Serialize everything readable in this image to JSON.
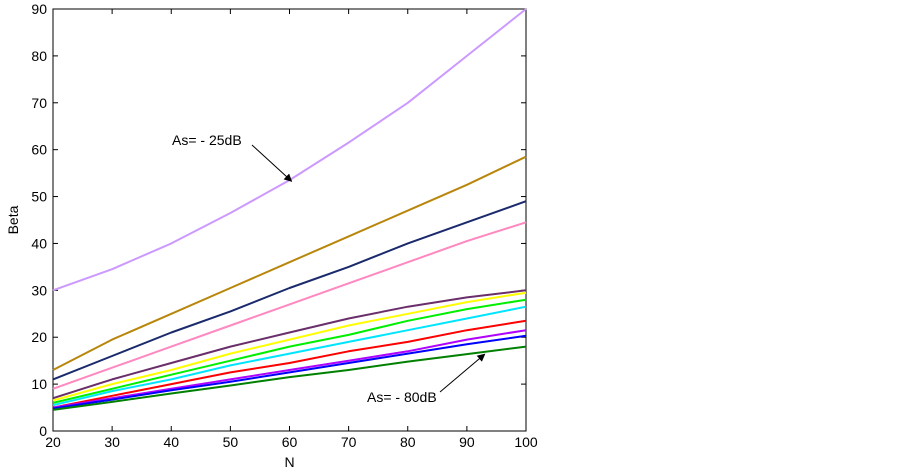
{
  "chart_data": {
    "type": "line",
    "title": "",
    "xlabel": "N",
    "ylabel": "Beta",
    "xlim": [
      20,
      100
    ],
    "ylim": [
      0,
      90
    ],
    "xticks": [
      20,
      30,
      40,
      50,
      60,
      70,
      80,
      90,
      100
    ],
    "yticks": [
      0,
      10,
      20,
      30,
      40,
      50,
      60,
      70,
      80,
      90
    ],
    "grid": false,
    "legend": "none",
    "x": [
      20,
      30,
      40,
      50,
      60,
      70,
      80,
      90,
      100
    ],
    "series": [
      {
        "color": "#cc99ff",
        "values": [
          30,
          34.5,
          40,
          46.5,
          53.5,
          61.5,
          70,
          80,
          90
        ]
      },
      {
        "color": "#b8860b",
        "values": [
          13,
          19.5,
          25,
          30.5,
          36,
          41.5,
          47,
          52.5,
          58.5
        ]
      },
      {
        "color": "#1a2a6c",
        "values": [
          11,
          16,
          21,
          25.5,
          30.5,
          35,
          40,
          44.5,
          49
        ]
      },
      {
        "color": "#ff88c0",
        "values": [
          9,
          13.5,
          18,
          22.5,
          27,
          31.5,
          36,
          40.5,
          44.5
        ]
      },
      {
        "color": "#6a2f6a",
        "values": [
          7,
          11,
          14.5,
          18,
          21,
          24,
          26.5,
          28.5,
          30
        ]
      },
      {
        "color": "#ffff00",
        "values": [
          6.5,
          10,
          13,
          16.5,
          19.5,
          22.5,
          25,
          27.5,
          29.5
        ]
      },
      {
        "color": "#00ee00",
        "values": [
          6,
          9,
          12,
          15,
          18,
          20.5,
          23.5,
          26,
          28
        ]
      },
      {
        "color": "#00e5ff",
        "values": [
          5.5,
          8.5,
          11,
          14,
          16.5,
          19,
          21.5,
          24,
          26.5
        ]
      },
      {
        "color": "#ff0000",
        "values": [
          5,
          7.5,
          10,
          12.5,
          14.5,
          17,
          19,
          21.5,
          23.5
        ]
      },
      {
        "color": "#b000ff",
        "values": [
          5,
          7,
          9,
          11,
          13,
          15,
          17,
          19.5,
          21.5
        ]
      },
      {
        "color": "#0000ff",
        "values": [
          4.8,
          6.7,
          8.7,
          10.5,
          12.5,
          14.5,
          16.5,
          18.5,
          20.3
        ]
      },
      {
        "color": "#008000",
        "values": [
          4.5,
          6.2,
          8,
          9.7,
          11.5,
          13,
          14.8,
          16.4,
          18
        ]
      }
    ],
    "annotations": [
      {
        "text": "As= - 25dB",
        "arrow_to": [
          60,
          53.5
        ]
      },
      {
        "text": "As= - 80dB",
        "arrow_to": [
          93,
          16.8
        ]
      }
    ]
  }
}
